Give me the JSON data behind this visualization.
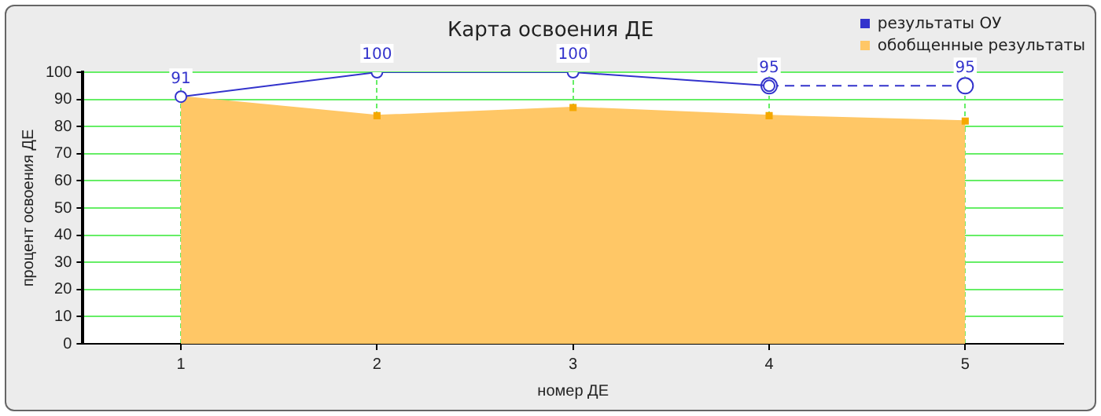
{
  "chart_data": {
    "type": "area",
    "title": "Карта освоения ДЕ",
    "xlabel": "номер ДЕ",
    "ylabel": "процент освоения ДЕ",
    "x": [
      1,
      2,
      3,
      4,
      5
    ],
    "xlim": [
      0.5,
      5.5
    ],
    "xticks": [
      1,
      2,
      3,
      4,
      5
    ],
    "ylim": [
      0,
      100
    ],
    "yticks": [
      0,
      10,
      20,
      30,
      40,
      50,
      60,
      70,
      80,
      90,
      100
    ],
    "grid": true,
    "legend": "top right",
    "series": [
      {
        "name": "обобщенные результаты",
        "color": "#ffc766",
        "marker": "square",
        "values": [
          91,
          84,
          87,
          84,
          82
        ]
      },
      {
        "name": "результаты ОУ",
        "type": "line",
        "color": "#3333cc",
        "marker": "circle",
        "line_style": "solid",
        "values": [
          91,
          100,
          100,
          95,
          null
        ],
        "value_labels": [
          "91",
          "100",
          "100",
          "95",
          null
        ]
      },
      {
        "type": "line",
        "color": "#3333cc",
        "marker": "circle",
        "line_style": "dashed",
        "values": [
          null,
          null,
          null,
          95,
          95
        ],
        "value_labels": [
          null,
          null,
          null,
          null,
          "95"
        ]
      }
    ]
  }
}
